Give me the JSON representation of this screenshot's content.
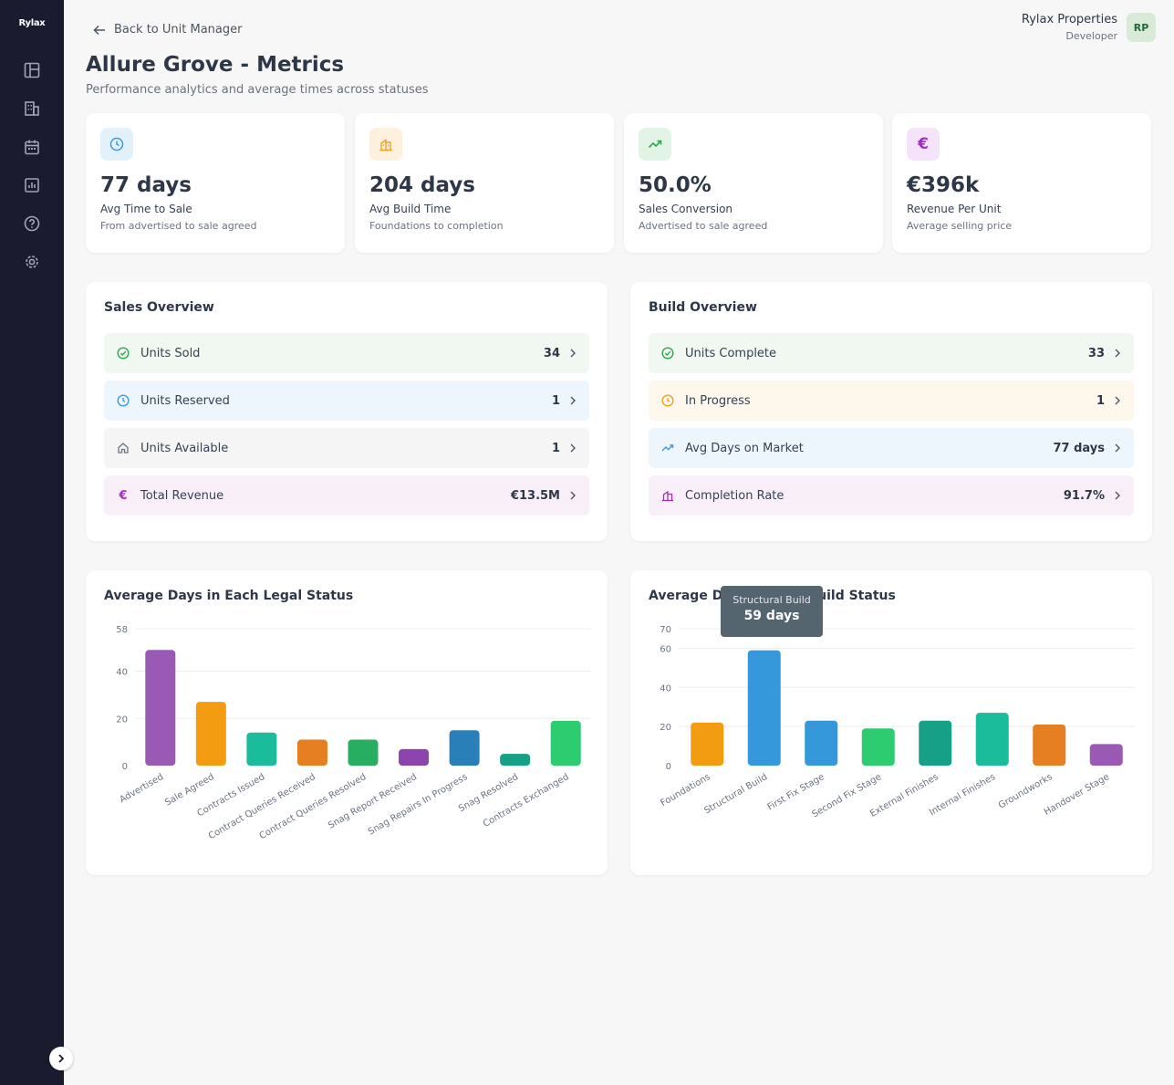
{
  "sidebar": {
    "logo": "Rylax",
    "nav": [
      "dashboard-icon",
      "building-icon",
      "calendar-icon",
      "report-icon",
      "help-icon",
      "settings-icon"
    ]
  },
  "header": {
    "back_label": "Back to Unit Manager",
    "title": "Allure Grove - Metrics",
    "subtitle": "Performance analytics and average times across statuses",
    "user_name": "Rylax Properties",
    "user_role": "Developer",
    "avatar": "RP"
  },
  "kpis": [
    {
      "icon": "clock-icon",
      "value": "77 days",
      "label": "Avg Time to Sale",
      "sub": "From advertised to sale agreed",
      "color": "#3b9ae1",
      "bg": "#e3f1fc"
    },
    {
      "icon": "building-icon",
      "value": "204 days",
      "label": "Avg Build Time",
      "sub": "Foundations to completion",
      "color": "#f2a024",
      "bg": "#fdf0dc"
    },
    {
      "icon": "trending-up-icon",
      "value": "50.0%",
      "label": "Sales Conversion",
      "sub": "Advertised to sale agreed",
      "color": "#2fa84f",
      "bg": "#e2f4e6"
    },
    {
      "icon": "euro-icon",
      "value": "€396k",
      "label": "Revenue Per Unit",
      "sub": "Average selling price",
      "color": "#a02cc0",
      "bg": "#f5e3fa"
    }
  ],
  "sales_overview": {
    "title": "Sales Overview",
    "rows": [
      {
        "label": "Units Sold",
        "value": "34",
        "icon": "check-circle-icon",
        "color": "#2fa84f",
        "bg": "#f0f8f1"
      },
      {
        "label": "Units Reserved",
        "value": "1",
        "icon": "clock-icon",
        "color": "#3b9ae1",
        "bg": "#eef6fd"
      },
      {
        "label": "Units Available",
        "value": "1",
        "icon": "home-icon",
        "color": "#6b7280",
        "bg": "#f5f5f5"
      },
      {
        "label": "Total Revenue",
        "value": "€13.5M",
        "icon": "euro-icon",
        "color": "#a02cc0",
        "bg": "#f8eff9"
      }
    ]
  },
  "build_overview": {
    "title": "Build Overview",
    "rows": [
      {
        "label": "Units Complete",
        "value": "33",
        "icon": "check-circle-icon",
        "color": "#2fa84f",
        "bg": "#f0f8f1"
      },
      {
        "label": "In Progress",
        "value": "1",
        "icon": "clock-icon",
        "color": "#f2a024",
        "bg": "#fdf7ec"
      },
      {
        "label": "Avg Days on Market",
        "value": "77 days",
        "icon": "trending-up-icon",
        "color": "#3b9ae1",
        "bg": "#eef6fd"
      },
      {
        "label": "Completion Rate",
        "value": "91.7%",
        "icon": "building-icon",
        "color": "#a02cc0",
        "bg": "#f8eff9"
      }
    ]
  },
  "chart_data": [
    {
      "type": "bar",
      "title": "Average Days in Each Legal Status",
      "categories": [
        "Advertised",
        "Sale Agreed",
        "Contracts Issued",
        "Contract Queries Received",
        "Contract Queries Resolved",
        "Snag Report Received",
        "Snag Repairs In Progress",
        "Snag Resolved",
        "Contracts Exchanged"
      ],
      "values": [
        49,
        27,
        14,
        11,
        11,
        7,
        15,
        5,
        19
      ],
      "colors": [
        "#9b59b6",
        "#f39c12",
        "#1abc9c",
        "#e67e22",
        "#27ae60",
        "#8e44ad",
        "#2980b9",
        "#16a085",
        "#2ecc71"
      ],
      "yticks": [
        0,
        20,
        40,
        58
      ],
      "ylim": [
        0,
        58
      ],
      "grid": true,
      "xlabel": "",
      "ylabel": ""
    },
    {
      "type": "bar",
      "title": "Average Days in Each Build Status",
      "categories": [
        "Foundations",
        "Structural Build",
        "First Fix Stage",
        "Second Fix Stage",
        "External Finishes",
        "Internal Finishes",
        "Groundworks",
        "Handover Stage"
      ],
      "values": [
        22,
        59,
        23,
        19,
        23,
        27,
        21,
        11
      ],
      "colors": [
        "#f39c12",
        "#3498db",
        "#3498db",
        "#2ecc71",
        "#16a085",
        "#1abc9c",
        "#e67e22",
        "#9b59b6"
      ],
      "yticks": [
        0,
        20,
        40,
        60,
        70
      ],
      "ylim": [
        0,
        70
      ],
      "grid": true,
      "xlabel": "",
      "ylabel": "",
      "tooltip": {
        "title": "Structural Build",
        "value": "59 days"
      }
    }
  ]
}
